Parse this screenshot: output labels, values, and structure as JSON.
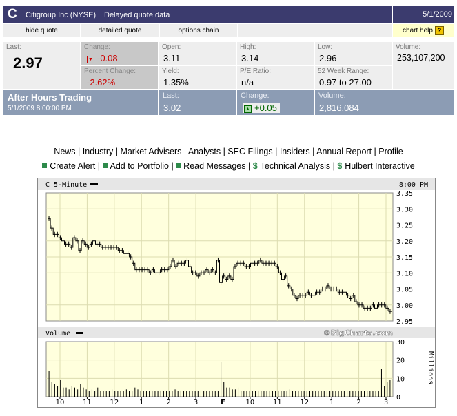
{
  "header": {
    "symbol": "C",
    "company": "Citigroup Inc (NYSE)",
    "status": "Delayed quote data",
    "date": "5/1/2009"
  },
  "links": {
    "hide_quote": "hide quote",
    "detailed_quote": "detailed quote",
    "options_chain": "options chain",
    "chart_help": "chart help",
    "help_icon": "?"
  },
  "quote": {
    "last_label": "Last:",
    "last": "2.97",
    "change_label": "Change:",
    "change": "-0.08",
    "pct_change_label": "Percent Change:",
    "pct_change": "-2.62%",
    "open_label": "Open:",
    "open": "3.11",
    "yield_label": "Yield:",
    "yield": "1.35%",
    "high_label": "High:",
    "high": "3.14",
    "pe_label": "P/E Ratio:",
    "pe": "n/a",
    "low_label": "Low:",
    "low": "2.96",
    "range_label": "52 Week Range:",
    "range": "0.97 to 27.00",
    "volume_label": "Volume:",
    "volume": "253,107,200"
  },
  "after_hours": {
    "title": "After Hours Trading",
    "timestamp": "5/1/2009 8:00:00 PM",
    "last_label": "Last:",
    "last": "3.02",
    "change_label": "Change:",
    "change": "+0.05",
    "volume_label": "Volume:",
    "volume": "2,816,084"
  },
  "nav1": [
    "News",
    "Industry",
    "Market Advisers",
    "Analysts",
    "SEC Filings",
    "Insiders",
    "Annual Report",
    "Profile"
  ],
  "nav2": {
    "create_alert": "Create Alert",
    "add_portfolio": "Add to Portfolio",
    "read_messages": "Read Messages",
    "technical": "Technical Analysis",
    "hulbert": "Hulbert Interactive"
  },
  "colors": {
    "header_bg": "#3b3b6e",
    "chart_bg": "#ffffdd",
    "after_hours_bg": "#8c9cb4",
    "down": "#cc0000",
    "up": "#006600"
  },
  "chart_data": {
    "type": "line",
    "title": "C 5-Minute",
    "time": "8:00 PM",
    "watermark": "©BigCharts.com",
    "price_ylim": [
      2.95,
      3.35
    ],
    "price_ticks": [
      "3.35",
      "3.30",
      "3.25",
      "3.20",
      "3.15",
      "3.10",
      "3.05",
      "3.00",
      "2.95"
    ],
    "volume_label": "Volume",
    "volume_ylim": [
      0,
      30
    ],
    "volume_ticks": [
      "30",
      "20",
      "10",
      "0"
    ],
    "volume_unit": "Millions",
    "x_ticks": [
      "10",
      "11",
      "12",
      "1",
      "2",
      "3",
      "F",
      "10",
      "11",
      "12",
      "1",
      "2",
      "3"
    ],
    "price_series": [
      3.27,
      3.24,
      3.22,
      3.22,
      3.21,
      3.2,
      3.19,
      3.19,
      3.18,
      3.21,
      3.2,
      3.17,
      3.2,
      3.19,
      3.18,
      3.19,
      3.2,
      3.19,
      3.19,
      3.18,
      3.18,
      3.18,
      3.18,
      3.18,
      3.18,
      3.17,
      3.17,
      3.16,
      3.16,
      3.15,
      3.13,
      3.11,
      3.11,
      3.11,
      3.11,
      3.11,
      3.1,
      3.11,
      3.1,
      3.1,
      3.11,
      3.11,
      3.11,
      3.12,
      3.14,
      3.12,
      3.13,
      3.13,
      3.13,
      3.14,
      3.12,
      3.1,
      3.1,
      3.09,
      3.1,
      3.1,
      3.11,
      3.1,
      3.11,
      3.1,
      3.14,
      3.07,
      3.09,
      3.08,
      3.09,
      3.08,
      3.12,
      3.13,
      3.13,
      3.13,
      3.12,
      3.12,
      3.13,
      3.13,
      3.13,
      3.14,
      3.13,
      3.13,
      3.13,
      3.13,
      3.13,
      3.12,
      3.1,
      3.08,
      3.09,
      3.06,
      3.05,
      3.03,
      3.02,
      3.03,
      3.03,
      3.03,
      3.04,
      3.03,
      3.03,
      3.04,
      3.04,
      3.05,
      3.05,
      3.06,
      3.05,
      3.05,
      3.05,
      3.04,
      3.04,
      3.04,
      3.03,
      3.02,
      3.03,
      3.01,
      3.0,
      3.0,
      2.99,
      2.99,
      2.99,
      3.0,
      2.99,
      3.0,
      3.0,
      3.0,
      2.99,
      2.98
    ],
    "volume_series": [
      14,
      8,
      7,
      6,
      9,
      5,
      5,
      4,
      6,
      5,
      4,
      7,
      5,
      4,
      3,
      4,
      3,
      5,
      3,
      3,
      3,
      3,
      4,
      3,
      3,
      3,
      3,
      4,
      3,
      3,
      5,
      4,
      3,
      3,
      3,
      3,
      3,
      3,
      3,
      3,
      3,
      3,
      3,
      3,
      4,
      3,
      3,
      3,
      3,
      3,
      3,
      3,
      3,
      3,
      3,
      3,
      3,
      3,
      3,
      3,
      19,
      8,
      5,
      5,
      4,
      4,
      5,
      3,
      3,
      3,
      3,
      3,
      3,
      3,
      3,
      3,
      3,
      3,
      3,
      3,
      3,
      3,
      3,
      3,
      4,
      3,
      3,
      3,
      3,
      3,
      3,
      3,
      3,
      3,
      3,
      3,
      3,
      3,
      3,
      3,
      3,
      3,
      3,
      3,
      3,
      3,
      3,
      3,
      3,
      3,
      3,
      3,
      3,
      3,
      3,
      3,
      15,
      6,
      8,
      9
    ]
  }
}
